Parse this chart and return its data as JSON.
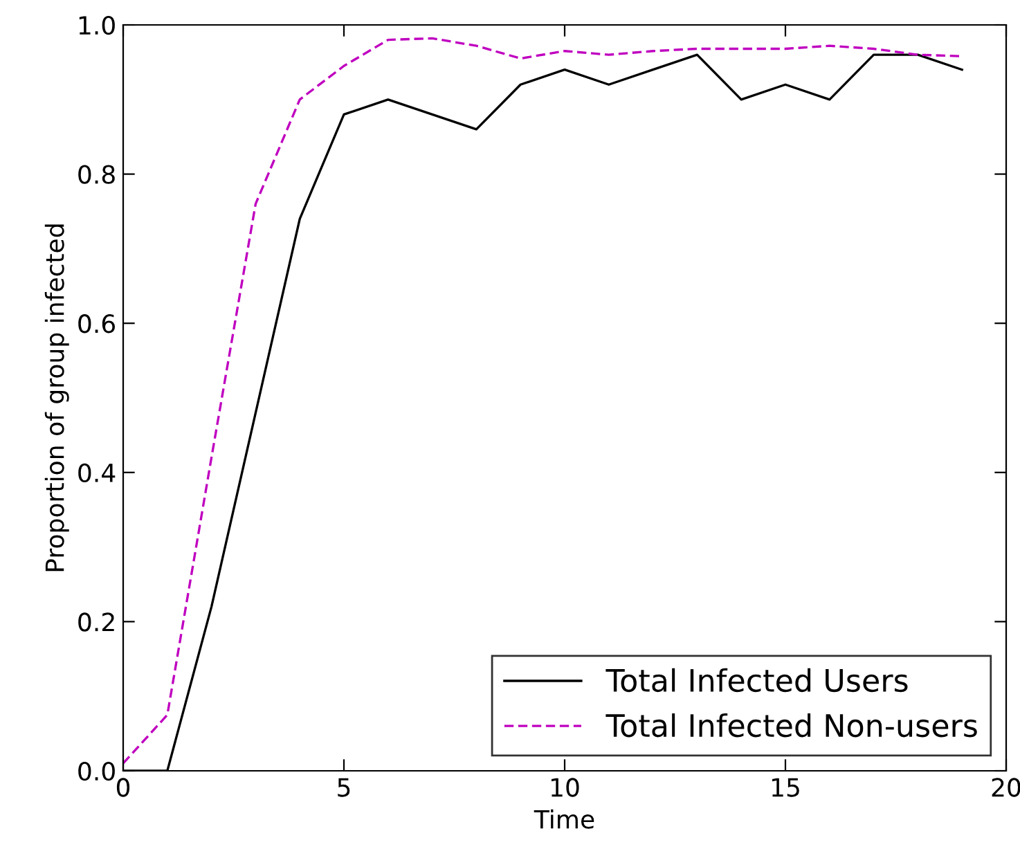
{
  "chart_data": {
    "type": "line",
    "xlabel": "Time",
    "ylabel": "Proportion of group infected",
    "x": [
      0,
      1,
      2,
      3,
      4,
      5,
      6,
      7,
      8,
      9,
      10,
      11,
      12,
      13,
      14,
      15,
      16,
      17,
      18,
      19
    ],
    "series": [
      {
        "name": "Total Infected Users",
        "color": "#000000",
        "line_style": "solid",
        "values": [
          0,
          0,
          0.22,
          0.48,
          0.74,
          0.88,
          0.9,
          0.88,
          0.86,
          0.92,
          0.94,
          0.92,
          0.94,
          0.96,
          0.9,
          0.92,
          0.9,
          0.96,
          0.96,
          0.94
        ]
      },
      {
        "name": "Total Infected Non-users",
        "color": "#bf00bf",
        "line_style": "dashed",
        "values": [
          0.01,
          0.075,
          0.42,
          0.76,
          0.9,
          0.945,
          0.98,
          0.982,
          0.972,
          0.955,
          0.965,
          0.96,
          0.965,
          0.968,
          0.968,
          0.968,
          0.972,
          0.968,
          0.96,
          0.958
        ]
      }
    ],
    "xlim": [
      0,
      20
    ],
    "ylim": [
      0,
      1.0
    ],
    "xticks": [
      0,
      5,
      10,
      15,
      20
    ],
    "yticks": [
      {
        "value": 0,
        "label": "0.0"
      },
      {
        "value": 0.2,
        "label": "0.2"
      },
      {
        "value": 0.4,
        "label": "0.4"
      },
      {
        "value": 0.6,
        "label": "0.6"
      },
      {
        "value": 0.8,
        "label": "0.8"
      },
      {
        "value": 1.0,
        "label": "1.0"
      }
    ],
    "legend": "bottom right",
    "grid": false
  }
}
